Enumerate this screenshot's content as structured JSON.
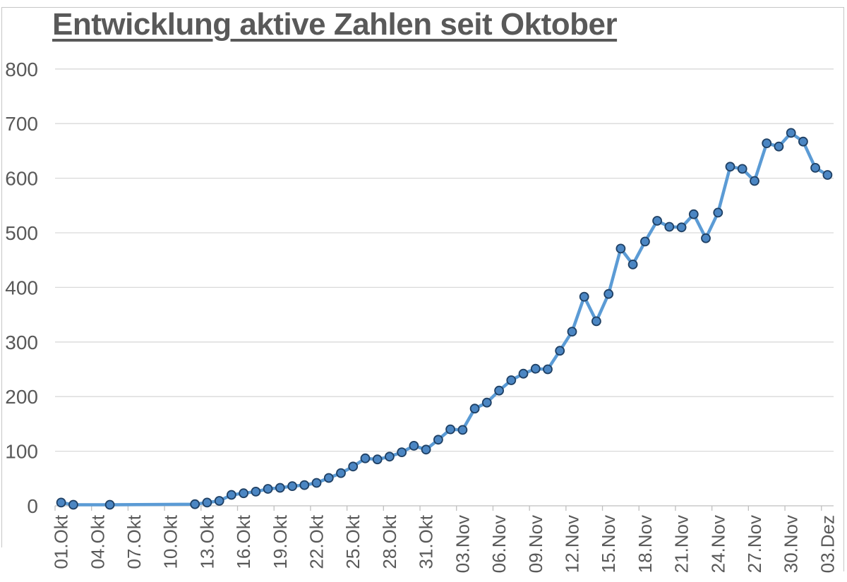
{
  "title": "Entwicklung aktive Zahlen seit Oktober",
  "colors": {
    "line": "#5B9BD5",
    "marker_fill": "#4B86C3",
    "marker_stroke": "#1F4064",
    "gridline": "#D9D9D9",
    "axis": "#BFBFBF",
    "tick": "#BFBFBF",
    "text": "#595959",
    "title_text": "#595959",
    "frame_border": "#C6C6C6",
    "background": "#FFFFFF"
  },
  "chart_data": {
    "type": "line",
    "title": "Entwicklung aktive Zahlen seit Oktober",
    "xlabel": "",
    "ylabel": "",
    "ylim": [
      0,
      800
    ],
    "y_ticks": [
      0,
      100,
      200,
      300,
      400,
      500,
      600,
      700,
      800
    ],
    "y_tick_labels": [
      "0",
      "100",
      "200",
      "300",
      "400",
      "500",
      "600",
      "700",
      "800"
    ],
    "grid": true,
    "legend": false,
    "marker": "circle",
    "connect_gaps": true,
    "x_tick_every": 3,
    "x_tick_labels": [
      "01.Okt",
      "04.Okt",
      "07.Okt",
      "10.Okt",
      "13.Okt",
      "16.Okt",
      "19.Okt",
      "22.Okt",
      "25.Okt",
      "28.Okt",
      "31.Okt",
      "03.Nov",
      "06.Nov",
      "09.Nov",
      "12.Nov",
      "15.Nov",
      "18.Nov",
      "21.Nov",
      "24.Nov",
      "27.Nov",
      "30.Nov",
      "03.Dez"
    ],
    "x": [
      "01.Okt",
      "02.Okt",
      "03.Okt",
      "04.Okt",
      "05.Okt",
      "06.Okt",
      "07.Okt",
      "08.Okt",
      "09.Okt",
      "10.Okt",
      "11.Okt",
      "12.Okt",
      "13.Okt",
      "14.Okt",
      "15.Okt",
      "16.Okt",
      "17.Okt",
      "18.Okt",
      "19.Okt",
      "20.Okt",
      "21.Okt",
      "22.Okt",
      "23.Okt",
      "24.Okt",
      "25.Okt",
      "26.Okt",
      "27.Okt",
      "28.Okt",
      "29.Okt",
      "30.Okt",
      "31.Okt",
      "01.Nov",
      "02.Nov",
      "03.Nov",
      "04.Nov",
      "05.Nov",
      "06.Nov",
      "07.Nov",
      "08.Nov",
      "09.Nov",
      "10.Nov",
      "11.Nov",
      "12.Nov",
      "13.Nov",
      "14.Nov",
      "15.Nov",
      "16.Nov",
      "17.Nov",
      "18.Nov",
      "19.Nov",
      "20.Nov",
      "21.Nov",
      "22.Nov",
      "23.Nov",
      "24.Nov",
      "25.Nov",
      "26.Nov",
      "27.Nov",
      "28.Nov",
      "29.Nov",
      "30.Nov",
      "01.Dez",
      "02.Dez",
      "03.Dez"
    ],
    "values": [
      6,
      2,
      null,
      null,
      2,
      null,
      null,
      null,
      null,
      null,
      null,
      3,
      6,
      9,
      20,
      23,
      26,
      31,
      33,
      36,
      38,
      42,
      51,
      60,
      72,
      87,
      85,
      90,
      98,
      110,
      103,
      121,
      140,
      139,
      178,
      189,
      211,
      230,
      242,
      251,
      250,
      284,
      319,
      383,
      338,
      388,
      471,
      442,
      484,
      522,
      511,
      510,
      534,
      490,
      537,
      621,
      617,
      595,
      664,
      658,
      683,
      667,
      619,
      606
    ]
  }
}
